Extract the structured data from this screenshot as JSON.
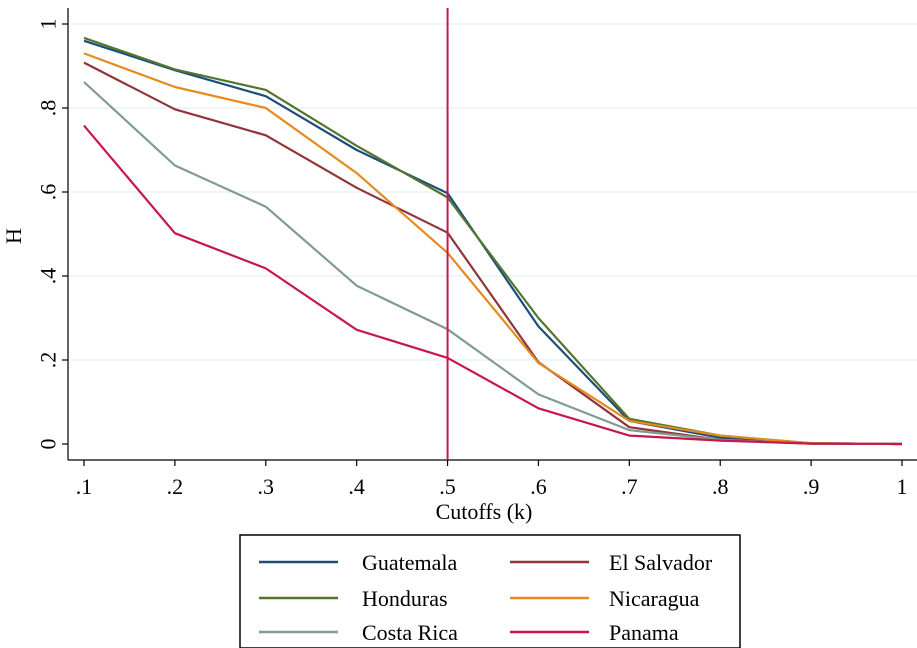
{
  "chart_data": {
    "type": "line",
    "title": "",
    "xlabel": "Cutoffs (k)",
    "ylabel": "H",
    "x": [
      0.1,
      0.2,
      0.3,
      0.4,
      0.5,
      0.6,
      0.7,
      0.8,
      0.9,
      1.0
    ],
    "x_tick_labels": [
      ".1",
      ".2",
      ".3",
      ".4",
      ".5",
      ".6",
      ".7",
      ".8",
      ".9",
      "1"
    ],
    "y_ticks": [
      0,
      0.2,
      0.4,
      0.6,
      0.8,
      1
    ],
    "y_tick_labels": [
      "0",
      ".2",
      ".4",
      ".6",
      ".8",
      "1"
    ],
    "xlim": [
      0.1,
      1.0
    ],
    "ylim": [
      0,
      1
    ],
    "grid": "horizontal",
    "reference_line": {
      "x": 0.5,
      "color": "#c8174a"
    },
    "legend_position": "bottom-center",
    "series": [
      {
        "name": "Guatemala",
        "color": "#1a4f7a",
        "values": [
          0.96,
          0.89,
          0.828,
          0.7,
          0.597,
          0.28,
          0.055,
          0.015,
          0.002,
          0.0
        ]
      },
      {
        "name": "El Salvador",
        "color": "#90353b",
        "values": [
          0.908,
          0.797,
          0.735,
          0.61,
          0.503,
          0.195,
          0.04,
          0.01,
          0.001,
          0.0
        ]
      },
      {
        "name": "Honduras",
        "color": "#55752f",
        "values": [
          0.967,
          0.892,
          0.843,
          0.71,
          0.587,
          0.3,
          0.06,
          0.02,
          0.002,
          0.0
        ]
      },
      {
        "name": "Nicaragua",
        "color": "#e68a1e",
        "values": [
          0.93,
          0.85,
          0.8,
          0.645,
          0.455,
          0.193,
          0.055,
          0.02,
          0.002,
          0.0
        ]
      },
      {
        "name": "Costa Rica",
        "color": "#7f9c8c",
        "values": [
          0.862,
          0.663,
          0.565,
          0.377,
          0.273,
          0.118,
          0.033,
          0.01,
          0.001,
          0.0
        ]
      },
      {
        "name": "Panama",
        "color": "#c8174a",
        "values": [
          0.758,
          0.502,
          0.418,
          0.272,
          0.205,
          0.085,
          0.02,
          0.008,
          0.001,
          0.0
        ]
      }
    ]
  }
}
